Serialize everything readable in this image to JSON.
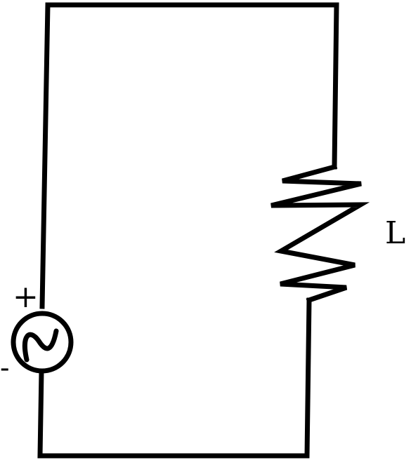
{
  "diagram": {
    "type": "circuit",
    "components": [
      {
        "kind": "ac-voltage-source",
        "positive_label": "+",
        "negative_label": "-"
      },
      {
        "kind": "resistor",
        "label": "L"
      }
    ],
    "colors": {
      "stroke": "#000000",
      "background": "#ffffff"
    }
  }
}
